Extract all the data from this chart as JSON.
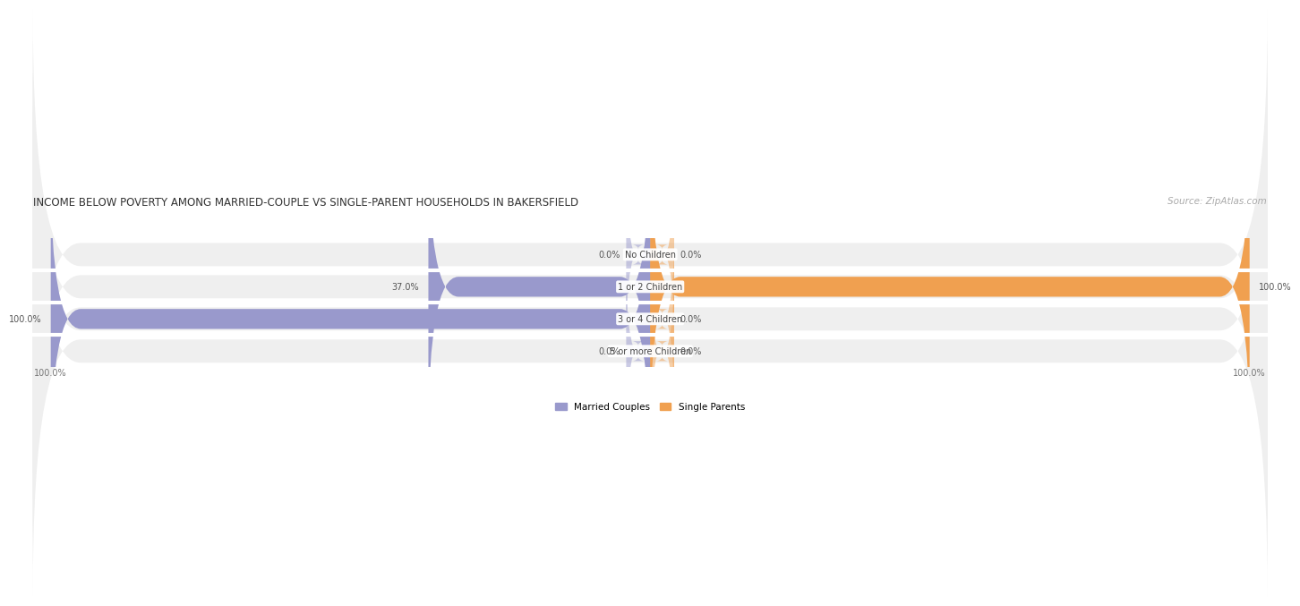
{
  "title": "INCOME BELOW POVERTY AMONG MARRIED-COUPLE VS SINGLE-PARENT HOUSEHOLDS IN BAKERSFIELD",
  "source": "Source: ZipAtlas.com",
  "categories": [
    "No Children",
    "1 or 2 Children",
    "3 or 4 Children",
    "5 or more Children"
  ],
  "married_values": [
    0.0,
    37.0,
    100.0,
    0.0
  ],
  "single_values": [
    0.0,
    100.0,
    0.0,
    0.0
  ],
  "married_color": "#9999cc",
  "single_color": "#f0a050",
  "bar_bg_color": "#e8e8e8",
  "row_bg_color": "#efefef",
  "white_gap": "#ffffff",
  "title_fontsize": 8.5,
  "source_fontsize": 7.5,
  "label_fontsize": 7,
  "value_fontsize": 7,
  "tick_fontsize": 7,
  "legend_fontsize": 7.5
}
